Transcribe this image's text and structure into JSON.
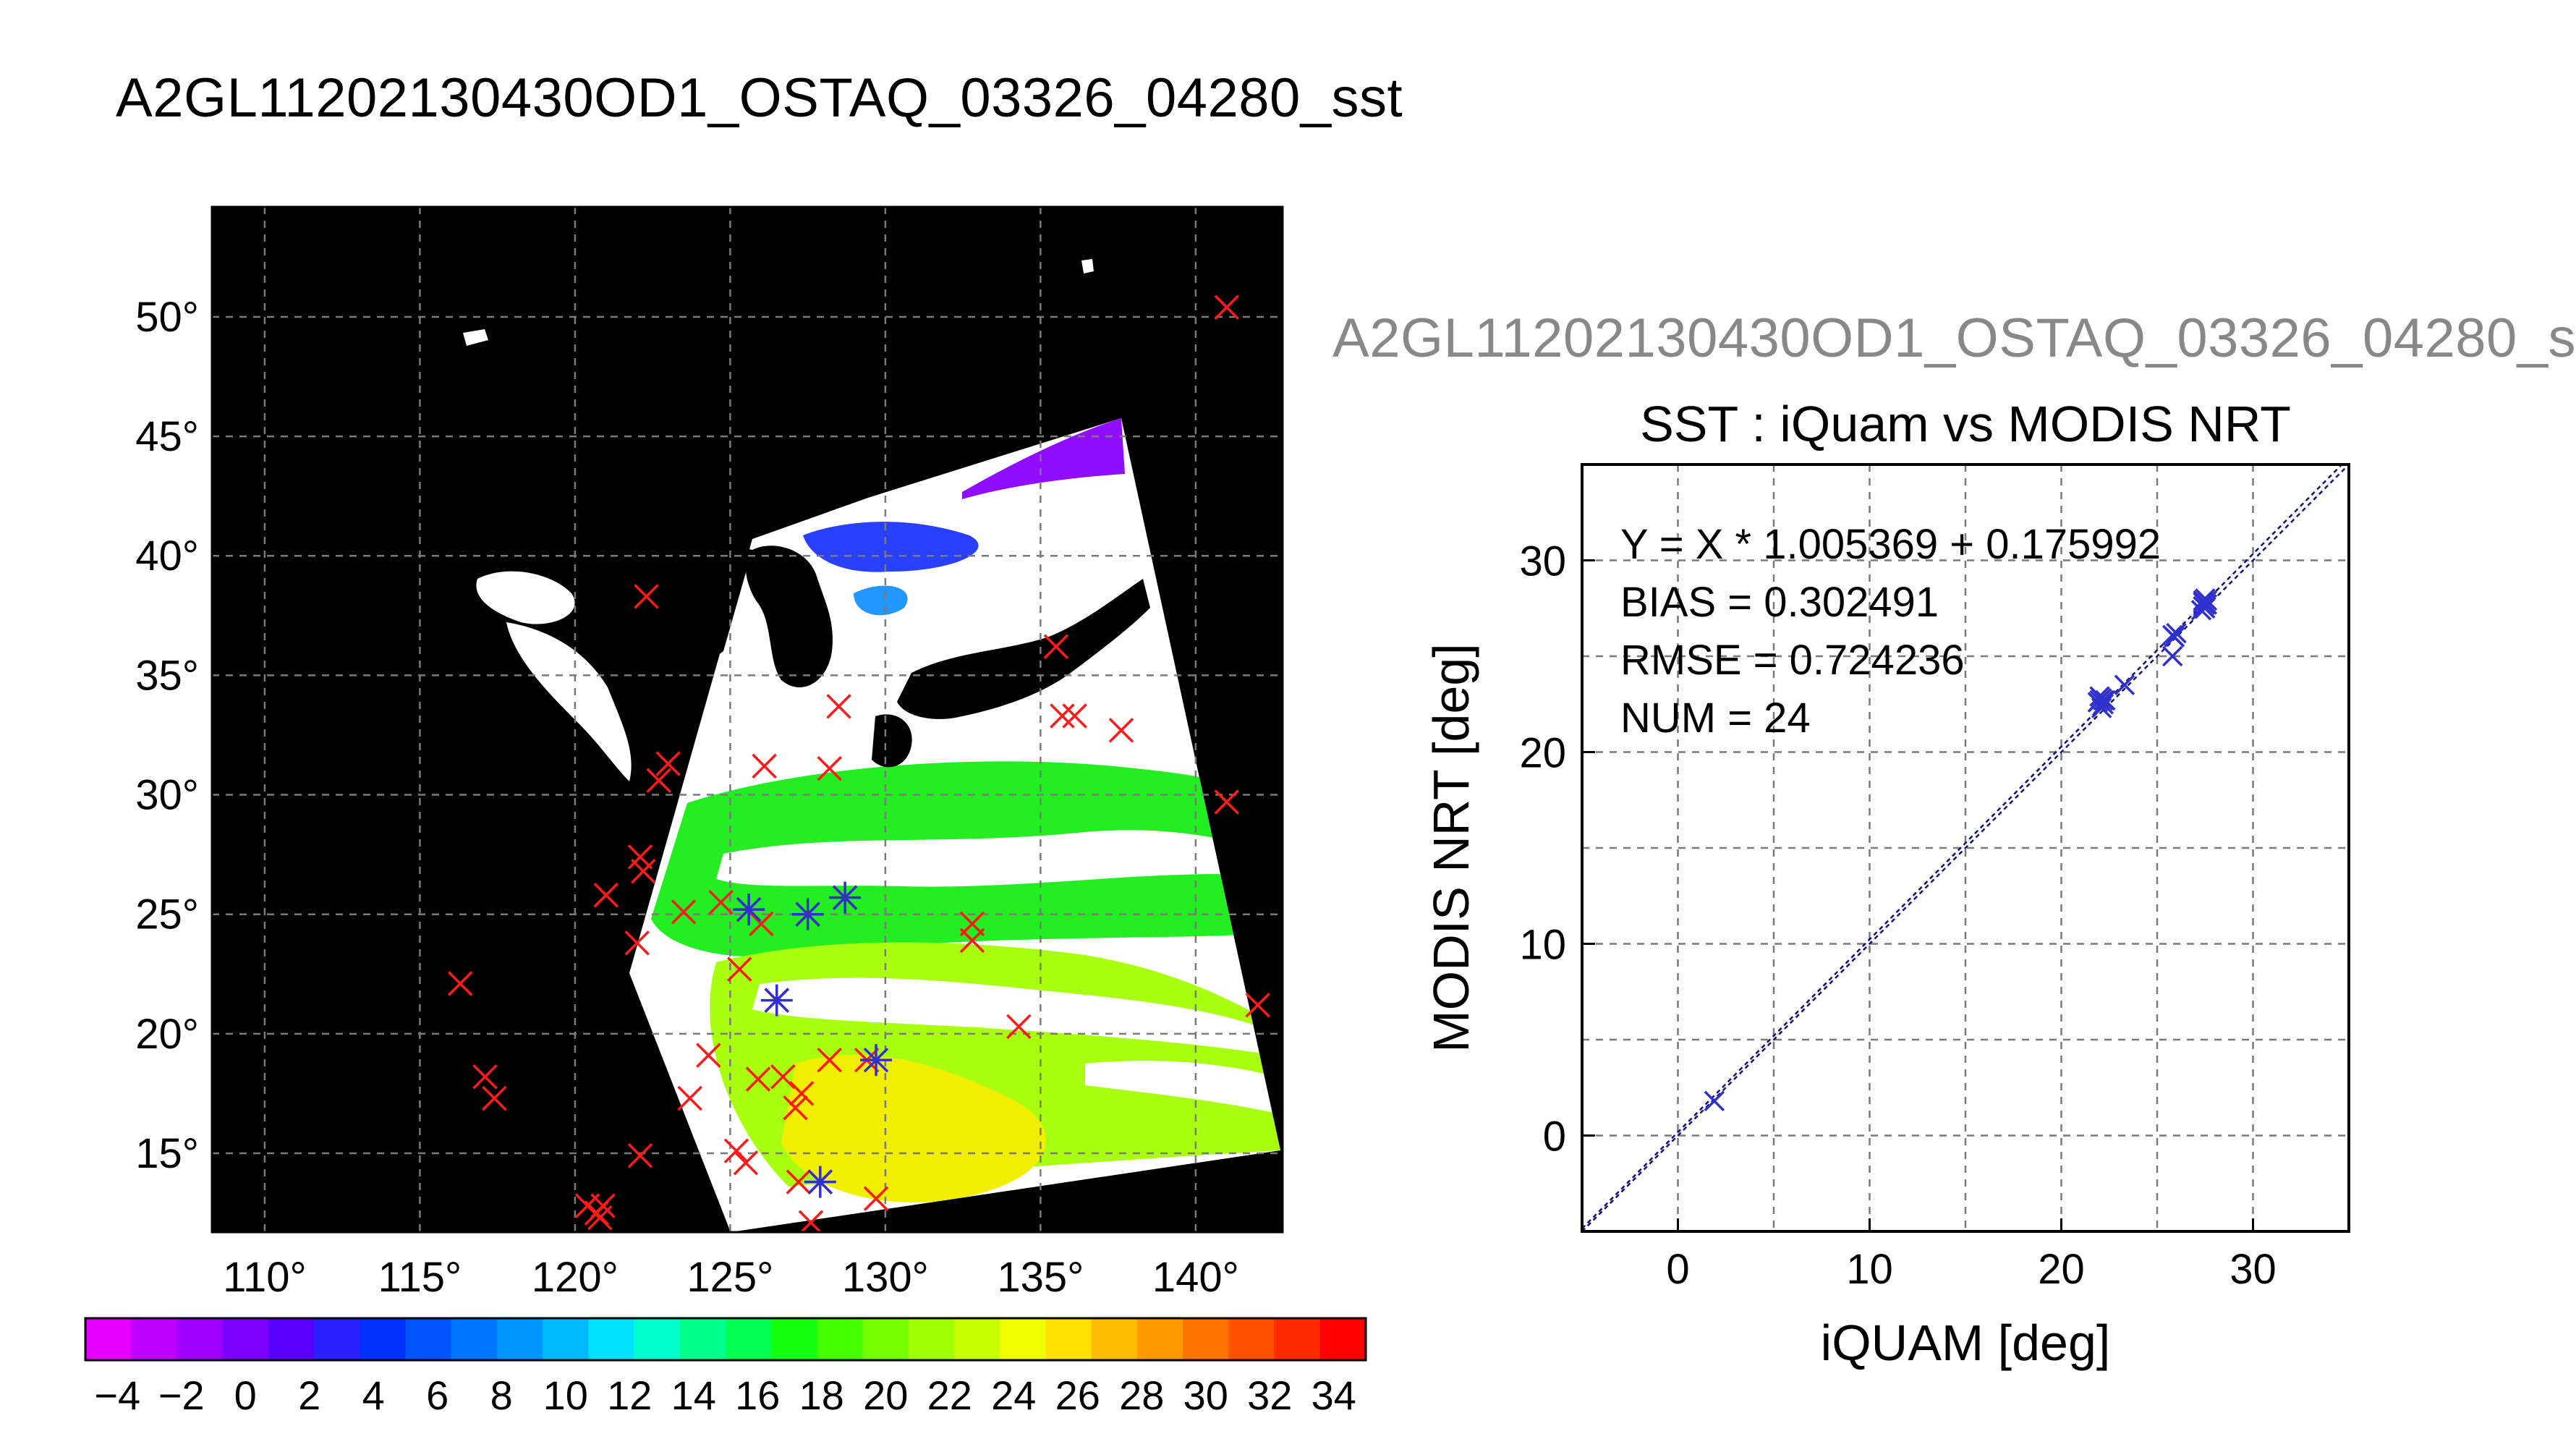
{
  "page_title": "A2GL11202130430OD1_OSTAQ_03326_04280_sst",
  "right_title": "A2GL11202130430OD1_OSTAQ_03326_04280_s",
  "colors": {
    "land": "#000000",
    "cloud": "#ffffff",
    "match_marker": "#ff1a1a",
    "valid_marker": "#3030cc",
    "grid": "#7a7a7a",
    "fit_line": "#101070"
  },
  "chart_data": [
    {
      "type": "heatmap",
      "title": "A2GL11202130430OD1_OSTAQ_03326_04280_sst",
      "description_kind": "map",
      "x_ticks": [
        "110°",
        "115°",
        "120°",
        "125°",
        "130°",
        "135°",
        "140°"
      ],
      "x_tick_values": [
        110,
        115,
        120,
        125,
        130,
        135,
        140
      ],
      "y_ticks": [
        "15°",
        "20°",
        "25°",
        "30°",
        "35°",
        "40°",
        "45°",
        "50°"
      ],
      "y_tick_values": [
        15,
        20,
        25,
        30,
        35,
        40,
        45,
        50
      ],
      "xlim": [
        108.3,
        142.8
      ],
      "ylim": [
        11.7,
        54.6
      ],
      "grid": true,
      "colorbar": {
        "ticks": [
          "−4",
          "−2",
          "0",
          "2",
          "4",
          "6",
          "8",
          "10",
          "12",
          "14",
          "16",
          "18",
          "20",
          "22",
          "24",
          "26",
          "28",
          "30",
          "32",
          "34"
        ],
        "min": -5,
        "max": 35,
        "colors": [
          "#e600ff",
          "#c000ff",
          "#9f00ff",
          "#7d00ff",
          "#5a00ff",
          "#2a20ff",
          "#0030ff",
          "#0055ff",
          "#0075ff",
          "#0095ff",
          "#00baff",
          "#00e0ff",
          "#00ffcc",
          "#00ff8c",
          "#00ff50",
          "#12ff12",
          "#44ff00",
          "#77ff00",
          "#a0ff00",
          "#c8ff00",
          "#f0ff00",
          "#ffe000",
          "#ffbb00",
          "#ff9900",
          "#ff7300",
          "#ff5000",
          "#ff2b00",
          "#ff0000"
        ]
      },
      "match_points": [
        [
          141,
          50.4
        ],
        [
          122.3,
          38.3
        ],
        [
          135.5,
          36.2
        ],
        [
          128.5,
          33.7
        ],
        [
          135.7,
          33.3
        ],
        [
          136.1,
          33.3
        ],
        [
          137.6,
          32.7
        ],
        [
          126.1,
          31.2
        ],
        [
          128.2,
          31.1
        ],
        [
          123,
          31.3
        ],
        [
          122.7,
          30.6
        ],
        [
          141,
          29.7
        ],
        [
          122.1,
          27.4
        ],
        [
          122.2,
          26.8
        ],
        [
          121,
          25.8
        ],
        [
          123.5,
          25.1
        ],
        [
          124.7,
          25.5
        ],
        [
          125.6,
          25.2
        ],
        [
          126,
          24.6
        ],
        [
          127.5,
          25
        ],
        [
          128.7,
          25.7
        ],
        [
          132.8,
          24.6
        ],
        [
          132.8,
          23.9
        ],
        [
          122,
          23.8
        ],
        [
          125.3,
          22.7
        ],
        [
          142,
          21.2
        ],
        [
          116.3,
          22.1
        ],
        [
          126.5,
          21.4
        ],
        [
          134.3,
          20.3
        ],
        [
          124.3,
          19.1
        ],
        [
          129.4,
          18.9
        ],
        [
          128.2,
          18.9
        ],
        [
          126.7,
          18.2
        ],
        [
          125.9,
          18.1
        ],
        [
          127.3,
          17.5
        ],
        [
          127.1,
          16.9
        ],
        [
          117.1,
          18.2
        ],
        [
          117.4,
          17.3
        ],
        [
          123.7,
          17.3
        ],
        [
          125.2,
          15.1
        ],
        [
          125.5,
          14.6
        ],
        [
          122.1,
          14.9
        ],
        [
          127.2,
          13.8
        ],
        [
          127.9,
          13.8
        ],
        [
          129.7,
          13.1
        ],
        [
          120.4,
          12.8
        ],
        [
          120.7,
          12.5
        ],
        [
          120.9,
          12.8
        ],
        [
          120.8,
          12.3
        ],
        [
          127.6,
          12.1
        ]
      ],
      "valid_points": [
        [
          125.6,
          25.2
        ],
        [
          127.5,
          25
        ],
        [
          128.7,
          25.7
        ],
        [
          126.5,
          21.4
        ],
        [
          129.7,
          18.9
        ],
        [
          127.9,
          13.8
        ]
      ]
    },
    {
      "type": "scatter",
      "title": "SST : iQuam vs MODIS NRT",
      "xlabel": "iQUAM [deg]",
      "ylabel": "MODIS NRT [deg]",
      "xlim": [
        -5,
        35
      ],
      "ylim": [
        -5,
        35
      ],
      "x_ticks": [
        0,
        10,
        20,
        30
      ],
      "y_ticks": [
        0,
        10,
        20,
        30
      ],
      "grid": true,
      "annotations": [
        "Y = X * 1.005369 + 0.175992",
        "BIAS = 0.302491",
        "RMSE = 0.724236",
        "NUM = 24"
      ],
      "fit": {
        "slope": 1.005369,
        "intercept": 0.175992
      },
      "points": [
        [
          1.9,
          1.8
        ],
        [
          22.0,
          22.7
        ],
        [
          22.1,
          22.8
        ],
        [
          22.2,
          22.5
        ],
        [
          22.0,
          22.9
        ],
        [
          21.9,
          22.6
        ],
        [
          22.3,
          22.7
        ],
        [
          22.1,
          22.3
        ],
        [
          23.3,
          23.5
        ],
        [
          25.8,
          26.1
        ],
        [
          25.9,
          26.0
        ],
        [
          25.8,
          25.0
        ],
        [
          26.0,
          26.2
        ],
        [
          27.4,
          27.8
        ],
        [
          27.5,
          27.5
        ],
        [
          27.4,
          27.9
        ],
        [
          27.6,
          27.7
        ],
        [
          27.3,
          27.4
        ],
        [
          27.5,
          28.0
        ],
        [
          27.4,
          27.6
        ],
        [
          27.6,
          27.9
        ],
        [
          27.5,
          27.7
        ],
        [
          25.9,
          26.0
        ],
        [
          22.2,
          22.7
        ]
      ]
    }
  ]
}
